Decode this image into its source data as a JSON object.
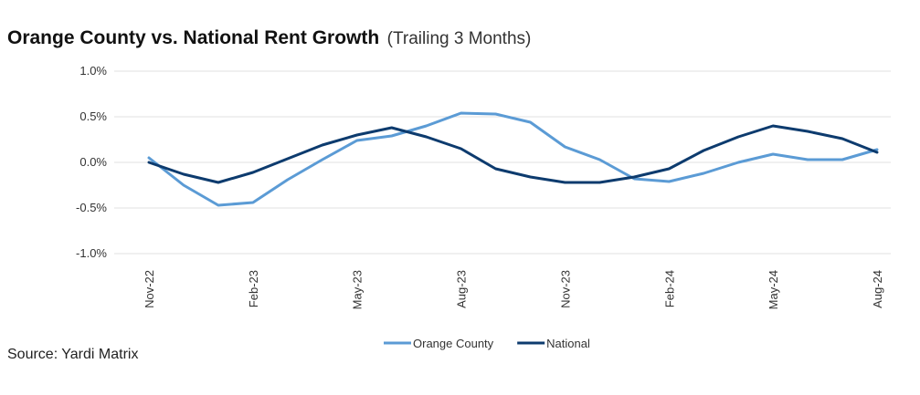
{
  "chart_data": {
    "type": "line",
    "title": "Orange County vs. National Rent Growth",
    "subtitle": "(Trailing 3 Months)",
    "x": [
      "Nov-22",
      "Dec-22",
      "Jan-23",
      "Feb-23",
      "Mar-23",
      "Apr-23",
      "May-23",
      "Jun-23",
      "Jul-23",
      "Aug-23",
      "Sep-23",
      "Oct-23",
      "Nov-23",
      "Dec-23",
      "Jan-24",
      "Feb-24",
      "Mar-24",
      "Apr-24",
      "May-24",
      "Jun-24",
      "Jul-24",
      "Aug-24"
    ],
    "x_tick_labels": [
      "Nov-22",
      "Feb-23",
      "May-23",
      "Aug-23",
      "Nov-23",
      "Feb-24",
      "May-24",
      "Aug-24"
    ],
    "y_ticks": [
      {
        "value": 1.0,
        "label": "1.0%"
      },
      {
        "value": 0.5,
        "label": "0.5%"
      },
      {
        "value": 0.0,
        "label": "0.0%"
      },
      {
        "value": -0.5,
        "label": "-0.5%"
      },
      {
        "value": -1.0,
        "label": "-1.0%"
      }
    ],
    "ylim": [
      -1.0,
      1.0
    ],
    "grid": "horizontal",
    "legend_position": "bottom-center",
    "series": [
      {
        "name": "Orange County",
        "color": "#5b9bd5",
        "values": [
          0.05,
          -0.25,
          -0.47,
          -0.44,
          -0.19,
          0.03,
          0.24,
          0.29,
          0.4,
          0.54,
          0.53,
          0.44,
          0.17,
          0.03,
          -0.18,
          -0.21,
          -0.12,
          0.0,
          0.09,
          0.03,
          0.03,
          0.14
        ]
      },
      {
        "name": "National",
        "color": "#0d3b6e",
        "values": [
          0.0,
          -0.13,
          -0.22,
          -0.11,
          0.04,
          0.19,
          0.3,
          0.38,
          0.28,
          0.15,
          -0.07,
          -0.16,
          -0.22,
          -0.22,
          -0.16,
          -0.07,
          0.13,
          0.28,
          0.4,
          0.34,
          0.26,
          0.11
        ]
      }
    ]
  },
  "source": "Source: Yardi Matrix"
}
